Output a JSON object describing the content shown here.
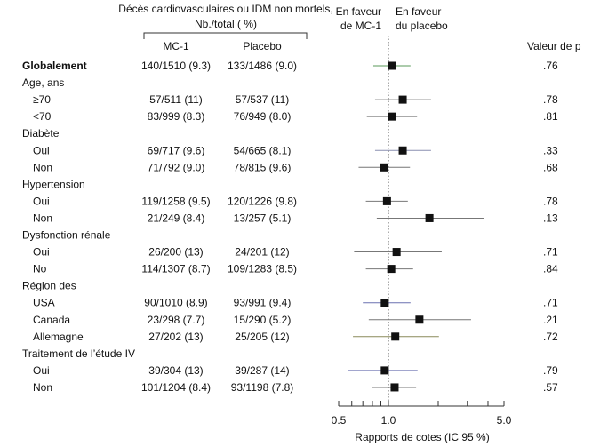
{
  "header": {
    "outcome_line1": "Décès cardiovasculaires ou IDM non mortels,",
    "outcome_line2": "Nb./total ( %)",
    "col_mc1": "MC-1",
    "col_placebo": "Placebo",
    "favors_mc1_line1": "En faveur",
    "favors_mc1_line2": "de MC-1",
    "favors_placebo_line1": "En faveur",
    "favors_placebo_line2": "du placebo",
    "pvalue": "Valeur de p"
  },
  "chart_data": {
    "type": "forest",
    "xlabel": "Rapports de cotes (IC 95 %)",
    "xscale": "log",
    "xlim": [
      0.5,
      5.0
    ],
    "tick_labels": [
      "0.5",
      "1.0",
      "5.0"
    ],
    "minor_ticks": [
      0.6,
      0.7,
      0.8,
      0.9,
      2,
      3,
      4
    ],
    "reference_line": 1.0,
    "rows": [
      {
        "label": "Globalement",
        "level": 0,
        "bold": true,
        "mc1": "140/1510 (9.3)",
        "placebo": "133/1486 (9.0)",
        "or": 1.05,
        "lo": 0.81,
        "hi": 1.36,
        "p": ".76",
        "color": "#5a9a5a"
      },
      {
        "label": "Age, ans",
        "level": 0,
        "header": true
      },
      {
        "label": "≥70",
        "level": 1,
        "mc1": "57/511 (11)",
        "placebo": "57/537 (11)",
        "or": 1.22,
        "lo": 0.83,
        "hi": 1.81,
        "p": ".78",
        "color": "#777777"
      },
      {
        "label": "<70",
        "level": 1,
        "mc1": "83/999 (8.3)",
        "placebo": "76/949 (8.0)",
        "or": 1.05,
        "lo": 0.74,
        "hi": 1.49,
        "p": ".81",
        "color": "#777777"
      },
      {
        "label": "Diabète",
        "level": 0,
        "header": true
      },
      {
        "label": "Oui",
        "level": 1,
        "mc1": "69/717 (9.6)",
        "placebo": "54/665 (8.1)",
        "or": 1.22,
        "lo": 0.83,
        "hi": 1.81,
        "p": ".33",
        "color": "#8a8fb0"
      },
      {
        "label": "Non",
        "level": 1,
        "mc1": "71/792 (9.0)",
        "placebo": "78/815 (9.6)",
        "or": 0.94,
        "lo": 0.66,
        "hi": 1.35,
        "p": ".68",
        "color": "#777777"
      },
      {
        "label": "Hypertension",
        "level": 0,
        "header": true
      },
      {
        "label": "Oui",
        "level": 1,
        "mc1": "119/1258 (9.5)",
        "placebo": "120/1226 (9.8)",
        "or": 0.98,
        "lo": 0.73,
        "hi": 1.31,
        "p": ".78",
        "color": "#777777"
      },
      {
        "label": "Non",
        "level": 1,
        "mc1": "21/249 (8.4)",
        "placebo": "13/257 (5.1)",
        "or": 1.77,
        "lo": 0.85,
        "hi": 3.76,
        "p": ".13",
        "color": "#777777"
      },
      {
        "label": "Dysfonction rénale",
        "level": 0,
        "header": true
      },
      {
        "label": "Oui",
        "level": 1,
        "mc1": "26/200 (13)",
        "placebo": "24/201 (12)",
        "or": 1.12,
        "lo": 0.62,
        "hi": 2.1,
        "p": ".71",
        "color": "#777777"
      },
      {
        "label": "No",
        "level": 1,
        "mc1": "114/1307 (8.7)",
        "placebo": "109/1283 (8.5)",
        "or": 1.04,
        "lo": 0.73,
        "hi": 1.41,
        "p": ".84",
        "color": "#777777"
      },
      {
        "label": "Région des",
        "level": 0,
        "header": true
      },
      {
        "label": "USA",
        "level": 1,
        "mc1": "90/1010 (8.9)",
        "placebo": "93/991 (9.4)",
        "or": 0.95,
        "lo": 0.7,
        "hi": 1.36,
        "p": ".71",
        "color": "#6a70b0"
      },
      {
        "label": "Canada",
        "level": 1,
        "mc1": "23/298 (7.7)",
        "placebo": "15/290 (5.2)",
        "or": 1.54,
        "lo": 0.76,
        "hi": 3.16,
        "p": ".21",
        "color": "#777777"
      },
      {
        "label": "Allemagne",
        "level": 1,
        "mc1": "27/202 (13)",
        "placebo": "25/205 (12)",
        "or": 1.1,
        "lo": 0.61,
        "hi": 2.02,
        "p": ".72",
        "color": "#8a8a5a"
      },
      {
        "label": "Traitement de l’étude IV",
        "level": 0,
        "header": true
      },
      {
        "label": "Oui",
        "level": 1,
        "mc1": "39/304 (13)",
        "placebo": "39/287 (14)",
        "or": 0.95,
        "lo": 0.57,
        "hi": 1.5,
        "p": ".79",
        "color": "#6a70b0"
      },
      {
        "label": "Non",
        "level": 1,
        "mc1": "101/1204 (8.4)",
        "placebo": "93/1198 (7.8)",
        "or": 1.09,
        "lo": 0.8,
        "hi": 1.47,
        "p": ".57",
        "color": "#777777"
      }
    ]
  }
}
